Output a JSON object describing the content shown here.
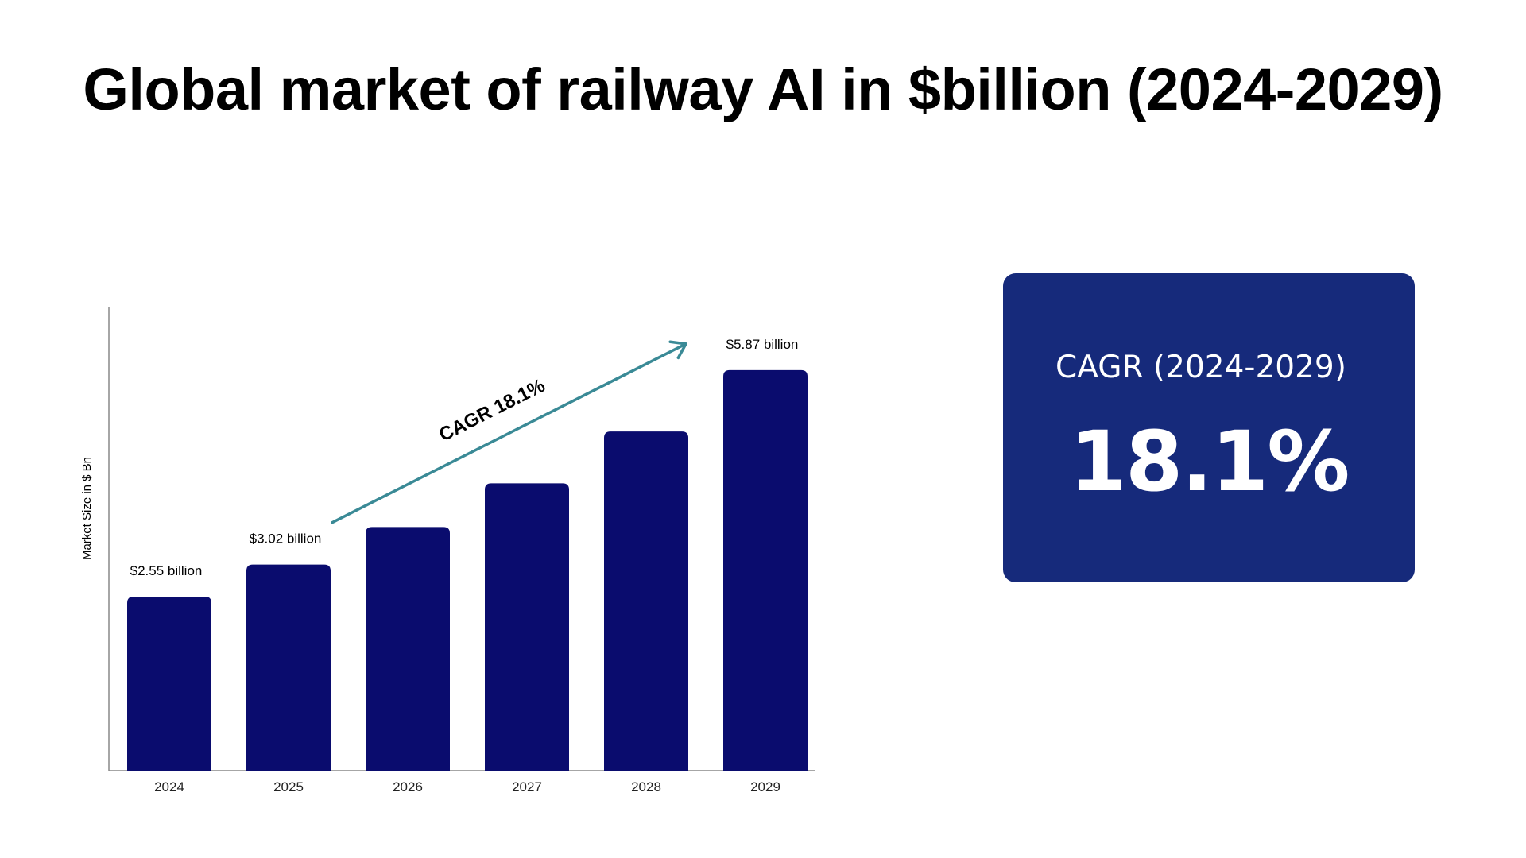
{
  "page": {
    "title": "Global market of railway AI in $billion (2024-2029)"
  },
  "chart_data": {
    "type": "bar",
    "title": "Global market of railway AI in $billion (2024-2029)",
    "ylabel": "Market Size in $ Bn",
    "xlabel": "",
    "categories": [
      "2024",
      "2025",
      "2026",
      "2027",
      "2028",
      "2029"
    ],
    "values": [
      2.55,
      3.02,
      3.57,
      4.21,
      4.97,
      5.87
    ],
    "data_labels": [
      "$2.55 billion",
      "$3.02 billion",
      "",
      "",
      "",
      "$5.87 billion"
    ],
    "ylim": [
      0,
      6.8
    ],
    "grid": false,
    "bar_color": "#0a0c6e",
    "annotation": {
      "text": "CAGR 18.1%",
      "color": "#3a8a96",
      "from_category": "2025",
      "to_category": "2029"
    }
  },
  "cagr_card": {
    "label": "CAGR (2024-2029)",
    "value": "18.1%",
    "background": "#162a7b"
  }
}
